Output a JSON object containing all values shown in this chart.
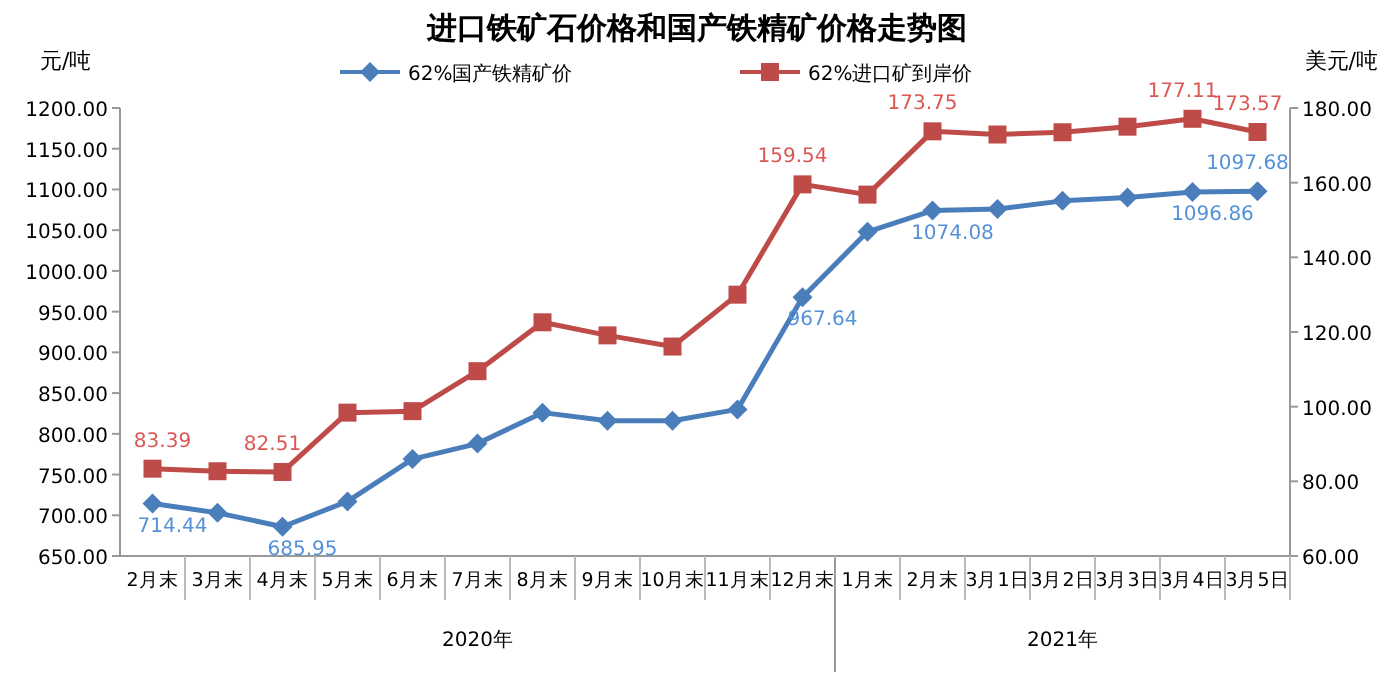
{
  "chart_data": {
    "type": "line",
    "title": "进口铁矿石价格和国产铁精矿价格走势图",
    "ylabel": "元/吨",
    "y2label": "美元/吨",
    "categories": [
      "2月末",
      "3月末",
      "4月末",
      "5月末",
      "6月末",
      "7月末",
      "8月末",
      "9月末",
      "10月末",
      "11月末",
      "12月末",
      "1月末",
      "2月末",
      "3月1日",
      "3月2日",
      "3月3日",
      "3月4日",
      "3月5日"
    ],
    "annotations": [
      "2020年",
      "2021年"
    ],
    "series": [
      {
        "name": "62%国产铁精矿价",
        "color": "#4a7ebb",
        "marker": "diamond",
        "values": [
          714.44,
          703,
          685.95,
          717,
          769,
          788,
          826,
          816,
          816,
          830,
          967.64,
          1048,
          1074.08,
          1076,
          1086,
          1090,
          1096.86,
          1097.68
        ],
        "value_labels": [
          "714.44",
          null,
          "685.95",
          null,
          null,
          null,
          null,
          null,
          null,
          null,
          "967.64",
          null,
          "1074.08",
          null,
          null,
          null,
          "1096.86",
          "1097.68"
        ]
      },
      {
        "name": "62%进口矿到岸价",
        "color": "#be4b48",
        "marker": "square",
        "axis": "y2",
        "values": [
          83.39,
          82.7,
          82.51,
          98.4,
          98.8,
          109.5,
          122.6,
          119.1,
          116.1,
          130,
          159.54,
          156.8,
          173.75,
          172.9,
          173.5,
          175,
          177.11,
          173.57
        ],
        "value_labels": [
          "83.39",
          null,
          "82.51",
          null,
          null,
          null,
          null,
          null,
          null,
          null,
          "159.54",
          null,
          "173.75",
          null,
          null,
          null,
          "177.11",
          "173.57"
        ]
      }
    ],
    "ylim": [
      650,
      1200
    ],
    "yticks": [
      {
        "value": 650,
        "label": "650.00"
      },
      {
        "value": 700,
        "label": "700.00"
      },
      {
        "value": 750,
        "label": "750.00"
      },
      {
        "value": 800,
        "label": "800.00"
      },
      {
        "value": 850,
        "label": "850.00"
      },
      {
        "value": 900,
        "label": "900.00"
      },
      {
        "value": 950,
        "label": "950.00"
      },
      {
        "value": 1000,
        "label": "1000.00"
      },
      {
        "value": 1050,
        "label": "1050.00"
      },
      {
        "value": 1100,
        "label": "1100.00"
      },
      {
        "value": 1150,
        "label": "1150.00"
      },
      {
        "value": 1200,
        "label": "1200.00"
      }
    ],
    "y2lim": [
      60,
      180
    ],
    "y2ticks": [
      {
        "value": 60,
        "label": "60.00"
      },
      {
        "value": 80,
        "label": "80.00"
      },
      {
        "value": 100,
        "label": "100.00"
      },
      {
        "value": 120,
        "label": "120.00"
      },
      {
        "value": 140,
        "label": "140.00"
      },
      {
        "value": 160,
        "label": "160.00"
      },
      {
        "value": 180,
        "label": "180.00"
      }
    ],
    "legend": "top",
    "grid": false
  }
}
